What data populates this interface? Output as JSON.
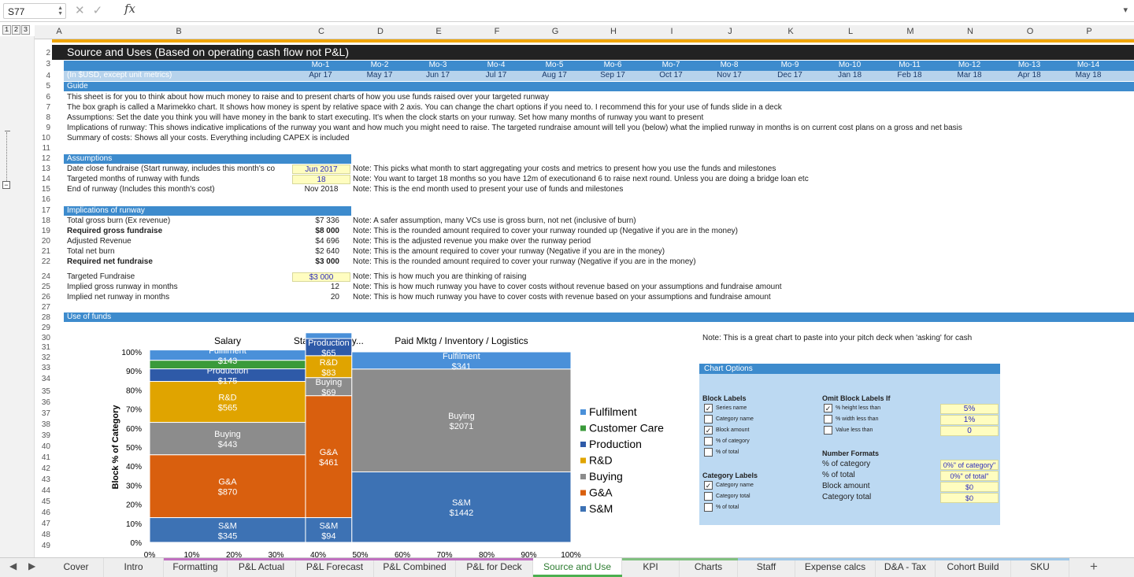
{
  "formula_bar": {
    "cell_ref": "S77",
    "fx": "fx"
  },
  "outline_levels": [
    "1",
    "2",
    "3"
  ],
  "columns": [
    "A",
    "B",
    "C",
    "D",
    "E",
    "F",
    "G",
    "H",
    "I",
    "J",
    "K",
    "L",
    "M",
    "N",
    "O",
    "P"
  ],
  "rows": [
    "2",
    "3",
    "4",
    "5",
    "6",
    "7",
    "8",
    "9",
    "10",
    "11",
    "12",
    "13",
    "14",
    "15",
    "16",
    "17",
    "18",
    "19",
    "20",
    "21",
    "22",
    "24",
    "25",
    "26",
    "27",
    "28",
    "29",
    "30",
    "31",
    "32",
    "33",
    "34",
    "35",
    "36",
    "37",
    "38",
    "39",
    "40",
    "41",
    "42",
    "43",
    "44",
    "45",
    "46",
    "47",
    "48",
    "49"
  ],
  "title": "Source and Uses (Based on operating cash flow not P&L)",
  "units_label": "(In $USD, except unit metrics)",
  "months": [
    {
      "mo": "Mo-1",
      "date": "Apr 17"
    },
    {
      "mo": "Mo-2",
      "date": "May 17"
    },
    {
      "mo": "Mo-3",
      "date": "Jun 17"
    },
    {
      "mo": "Mo-4",
      "date": "Jul 17"
    },
    {
      "mo": "Mo-5",
      "date": "Aug 17"
    },
    {
      "mo": "Mo-6",
      "date": "Sep 17"
    },
    {
      "mo": "Mo-7",
      "date": "Oct 17"
    },
    {
      "mo": "Mo-8",
      "date": "Nov 17"
    },
    {
      "mo": "Mo-9",
      "date": "Dec 17"
    },
    {
      "mo": "Mo-10",
      "date": "Jan 18"
    },
    {
      "mo": "Mo-11",
      "date": "Feb 18"
    },
    {
      "mo": "Mo-12",
      "date": "Mar 18"
    },
    {
      "mo": "Mo-13",
      "date": "Apr 18"
    },
    {
      "mo": "Mo-14",
      "date": "May 18"
    }
  ],
  "guide": {
    "header": "Guide",
    "lines": [
      "This sheet is for you to think about how much money to raise and to present charts of how you use funds raised over your targeted runway",
      "The box graph is called a Marimekko chart. It shows how money is spent by relative space with 2 axis. You can change the chart options if you need to. I recommend this for your use of funds slide in a deck",
      "Assumptions: Set the date you think you will have money in the bank to start executing. It's when the clock starts on your runway. Set how many months of runway you want to present",
      "Implications of runway: This shows indicative implications of the runway you want and how much you might need to raise. The targeted rundraise amount will tell you (below) what the implied runway in months is on current cost plans on a gross and net basis",
      "Summary of costs: Shows all your costs. Everything including CAPEX is included"
    ]
  },
  "assumptions": {
    "header": "Assumptions",
    "rows": [
      {
        "label": "Date close fundraise (Start runway, includes this month's co",
        "value": "Jun 2017",
        "note": "Note: This picks what month to start aggregating your costs and metrics to present how you use the funds and milestones"
      },
      {
        "label": "Targeted months of runway with funds",
        "value": "18",
        "note": "Note: You want to target 18 months so you have 12m of executionand 6 to raise next round. Unless you are doing a bridge loan etc"
      },
      {
        "label": "End of runway (Includes this month's cost)",
        "value": "Nov 2018",
        "note": "Note: This is the end month used to present your use of funds and milestones"
      }
    ]
  },
  "implications": {
    "header": "Implications of runway",
    "rows": [
      {
        "label": "Total gross burn (Ex revenue)",
        "value": "$7 336",
        "note": "Note: A safer assumption, many VCs use is gross burn, not net (inclusive of burn)"
      },
      {
        "label": "Required gross fundraise",
        "value": "$8 000",
        "note": "Note: This is the rounded amount required to cover your runway rounded up (Negative if you are in the money)"
      },
      {
        "label": "Adjusted Revenue",
        "value": "$4 696",
        "note": "Note: This is the adjusted revenue you make over the runway period"
      },
      {
        "label": "Total net burn",
        "value": "$2 640",
        "note": "Note: This is the amount required to cover your runway (Negative if you are in the money)"
      },
      {
        "label": "Required net fundraise",
        "value": "$3 000",
        "note": "Note: This is the rounded amount required to cover your runway (Negative if you are in the money)"
      }
    ],
    "targeted": {
      "label": "Targeted Fundraise",
      "value": "$3 000",
      "note": "Note: This is how much you are thinking of raising"
    },
    "gross_runway": {
      "label": "Implied gross runway in months",
      "value": "12",
      "note": "Note: This is how much runway you have to cover costs without revenue based on your assumptions and fundraise amount"
    },
    "net_runway": {
      "label": "Implied net runway in months",
      "value": "20",
      "note": "Note: This is how much runway you have to cover costs with revenue based on your assumptions and fundraise amount"
    }
  },
  "use_of_funds": {
    "header": "Use of funds",
    "note": "Note: This is a great chart to paste into your pitch deck when 'asking' for cash"
  },
  "chart_data": {
    "type": "marimekko",
    "ylabel": "Block % of Category",
    "x_ticks": [
      "0%",
      "10%",
      "20%",
      "30%",
      "40%",
      "50%",
      "60%",
      "70%",
      "80%",
      "90%",
      "100%"
    ],
    "y_ticks": [
      "0%",
      "10%",
      "20%",
      "30%",
      "40%",
      "50%",
      "60%",
      "70%",
      "80%",
      "90%",
      "100%"
    ],
    "categories": [
      {
        "name": "Salary",
        "width": 0.37,
        "blocks": [
          {
            "series": "S&M",
            "value": "$345",
            "label": "S&M",
            "h": 0.13
          },
          {
            "series": "G&A",
            "value": "$870",
            "label": "G&A",
            "h": 0.33
          },
          {
            "series": "Buying",
            "value": "$443",
            "label": "Buying",
            "h": 0.17
          },
          {
            "series": "R&D",
            "value": "$565",
            "label": "R&D",
            "h": 0.215
          },
          {
            "series": "Production",
            "value": "$175",
            "label": "Production",
            "h": 0.066
          },
          {
            "series": "Customer Care",
            "value": "",
            "label": "",
            "h": 0.045
          },
          {
            "series": "Fulfilment",
            "value": "$143",
            "label": "Fulfilment",
            "h": 0.054
          }
        ]
      },
      {
        "name": "Staff/ Category...",
        "width": 0.11,
        "blocks": [
          {
            "series": "S&M",
            "value": "$94",
            "label": "S&M",
            "h": 0.13
          },
          {
            "series": "G&A",
            "value": "$461",
            "label": "G&A",
            "h": 0.64
          },
          {
            "series": "Buying",
            "value": "$69",
            "label": "Buying",
            "h": 0.095
          },
          {
            "series": "R&D",
            "value": "$83",
            "label": "R&D",
            "h": 0.115
          },
          {
            "series": "Production",
            "value": "$65",
            "label": "Production",
            "h": 0.09
          },
          {
            "series": "Fulfilment",
            "value": "",
            "label": "",
            "h": 0.03
          }
        ]
      },
      {
        "name": "Paid Mktg / Inventory / Logistics",
        "width": 0.52,
        "blocks": [
          {
            "series": "S&M",
            "value": "$1442",
            "label": "S&M",
            "h": 0.37
          },
          {
            "series": "Buying",
            "value": "$2071",
            "label": "Buying",
            "h": 0.54
          },
          {
            "series": "Fulfilment",
            "value": "$341",
            "label": "Fulfilment",
            "h": 0.09
          }
        ]
      }
    ],
    "legend": [
      "Fulfilment",
      "Customer Care",
      "Production",
      "R&D",
      "Buying",
      "G&A",
      "S&M"
    ],
    "colors": {
      "Fulfilment": "#4a90d9",
      "Customer Care": "#3a9a3a",
      "Production": "#2e5aa8",
      "R&D": "#e0a400",
      "Buying": "#8c8c8c",
      "G&A": "#d95f0e",
      "S&M": "#3d72b4"
    }
  },
  "chart_options": {
    "title": "Chart Options",
    "block_labels": {
      "header": "Block Labels",
      "items": [
        {
          "label": "Series name",
          "checked": true
        },
        {
          "label": "Category name",
          "checked": false
        },
        {
          "label": "Block amount",
          "checked": true
        },
        {
          "label": "% of category",
          "checked": false
        },
        {
          "label": "% of total",
          "checked": false
        }
      ]
    },
    "category_labels": {
      "header": "Category Labels",
      "items": [
        {
          "label": "Category name",
          "checked": true
        },
        {
          "label": "Category total",
          "checked": false
        },
        {
          "label": "% of total",
          "checked": false
        }
      ]
    },
    "omit": {
      "header": "Omit Block Labels If",
      "items": [
        {
          "label": "% height less than",
          "checked": true,
          "value": "5%"
        },
        {
          "label": "% width less than",
          "checked": false,
          "value": "1%"
        },
        {
          "label": "Value less than",
          "checked": false,
          "value": "0"
        }
      ]
    },
    "number_formats": {
      "header": "Number Formats",
      "items": [
        {
          "label": "% of category",
          "value": "0%\" of category\""
        },
        {
          "label": "% of total",
          "value": "0%\" of total\""
        },
        {
          "label": "Block amount",
          "value": "$0"
        },
        {
          "label": "Category total",
          "value": "$0"
        }
      ]
    }
  },
  "tabs": [
    {
      "label": "Cover",
      "active": false
    },
    {
      "label": "Intro",
      "active": false
    },
    {
      "label": "Formatting",
      "active": false,
      "color": "#c070c0"
    },
    {
      "label": "P&L Actual",
      "active": false,
      "color": "#c070c0"
    },
    {
      "label": "P&L Forecast",
      "active": false,
      "color": "#c070c0"
    },
    {
      "label": "P&L Combined",
      "active": false,
      "color": "#c070c0"
    },
    {
      "label": "P&L for Deck",
      "active": false,
      "color": "#c070c0"
    },
    {
      "label": "Source and Use",
      "active": true,
      "color": "#4caf50"
    },
    {
      "label": "KPI",
      "active": false,
      "color": "#80c080"
    },
    {
      "label": "Charts",
      "active": false,
      "color": "#80c080"
    },
    {
      "label": "Staff",
      "active": false,
      "color": "#a0c8e8"
    },
    {
      "label": "Expense calcs",
      "active": false,
      "color": "#a0c8e8"
    },
    {
      "label": "D&A - Tax",
      "active": false,
      "color": "#a0c8e8"
    },
    {
      "label": "Cohort Build",
      "active": false,
      "color": "#a0c8e8"
    },
    {
      "label": "SKU",
      "active": false,
      "color": "#a0c8e8"
    }
  ],
  "icons": {
    "add_sheet": "+",
    "prev": "◀",
    "next": "▶",
    "cancel": "✕",
    "confirm": "✓",
    "dropdown": "▾"
  }
}
